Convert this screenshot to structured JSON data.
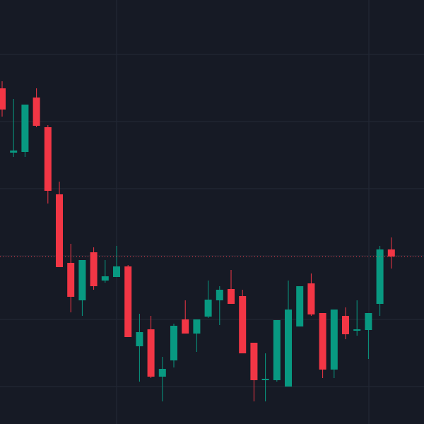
{
  "chart_data": {
    "type": "candlestick",
    "open": [
      475,
      384,
      385,
      462,
      420,
      325,
      228,
      175,
      243,
      203,
      208,
      223,
      110,
      134,
      67,
      90,
      148,
      128,
      152,
      175,
      191,
      181,
      115,
      62,
      62,
      53,
      138,
      199,
      157,
      77,
      153,
      132,
      133,
      170,
      247
    ],
    "high": [
      485,
      460,
      452,
      475,
      423,
      343,
      255,
      232,
      250,
      232,
      252,
      225,
      156,
      153,
      95,
      142,
      175,
      148,
      203,
      195,
      218,
      190,
      115,
      100,
      147,
      203,
      195,
      213,
      157,
      162,
      165,
      175,
      157,
      252,
      264
    ],
    "low": [
      435,
      378,
      378,
      420,
      312,
      222,
      158,
      153,
      190,
      200,
      208,
      123,
      60,
      65,
      32,
      80,
      128,
      102,
      150,
      140,
      170,
      100,
      32,
      32,
      60,
      53,
      138,
      153,
      65,
      65,
      120,
      125,
      92,
      153,
      220
    ],
    "close": [
      445,
      387,
      452,
      422,
      330,
      222,
      180,
      232,
      195,
      209,
      223,
      123,
      130,
      67,
      78,
      139,
      128,
      148,
      176,
      190,
      170,
      100,
      62,
      64,
      147,
      162,
      195,
      155,
      77,
      162,
      127,
      134,
      157,
      247,
      237
    ],
    "up_color": "#089981",
    "down_color": "#f23645",
    "ylim": [
      0,
      600
    ],
    "yticks": [
      53,
      148,
      238,
      333,
      428,
      523
    ],
    "grid": true
  }
}
